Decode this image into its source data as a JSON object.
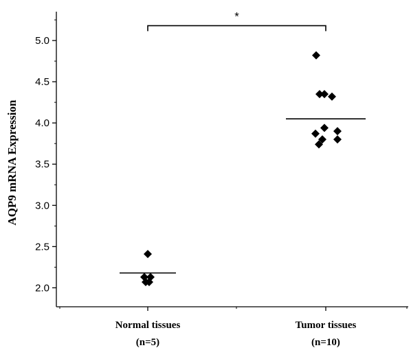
{
  "chart_data": {
    "type": "scatter",
    "ylabel": "AQP9 mRNA Expression",
    "ylim": [
      1.77,
      5.35
    ],
    "yticks": [
      2.0,
      2.5,
      3.0,
      3.5,
      4.0,
      4.5,
      5.0
    ],
    "ytick_labels": [
      "2.0",
      "2.5",
      "3.0",
      "3.5",
      "4.0",
      "4.5",
      "5.0"
    ],
    "categories": [
      "Normal tissues",
      "Tumor tissues"
    ],
    "category_n": [
      "(n=5)",
      "(n=10)"
    ],
    "groups": [
      {
        "category": "Normal tissues",
        "mean": 2.18,
        "points": [
          {
            "x": 0.0,
            "y": 2.41
          },
          {
            "x": -0.05,
            "y": 2.13
          },
          {
            "x": 0.04,
            "y": 2.13
          },
          {
            "x": -0.03,
            "y": 2.07
          },
          {
            "x": 0.02,
            "y": 2.07
          }
        ]
      },
      {
        "category": "Tumor tissues",
        "mean": 4.05,
        "points": [
          {
            "x": -0.14,
            "y": 4.82
          },
          {
            "x": -0.09,
            "y": 4.35
          },
          {
            "x": -0.02,
            "y": 4.35
          },
          {
            "x": 0.09,
            "y": 4.32
          },
          {
            "x": -0.02,
            "y": 3.94
          },
          {
            "x": -0.15,
            "y": 3.87
          },
          {
            "x": 0.17,
            "y": 3.9
          },
          {
            "x": -0.05,
            "y": 3.8
          },
          {
            "x": 0.17,
            "y": 3.8
          },
          {
            "x": -0.1,
            "y": 3.74
          }
        ]
      }
    ],
    "significance": {
      "label": "*",
      "from": "Normal tissues",
      "to": "Tumor tissues",
      "y": 5.18
    },
    "grid": false,
    "marker": "diamond",
    "marker_color": "#000000"
  }
}
